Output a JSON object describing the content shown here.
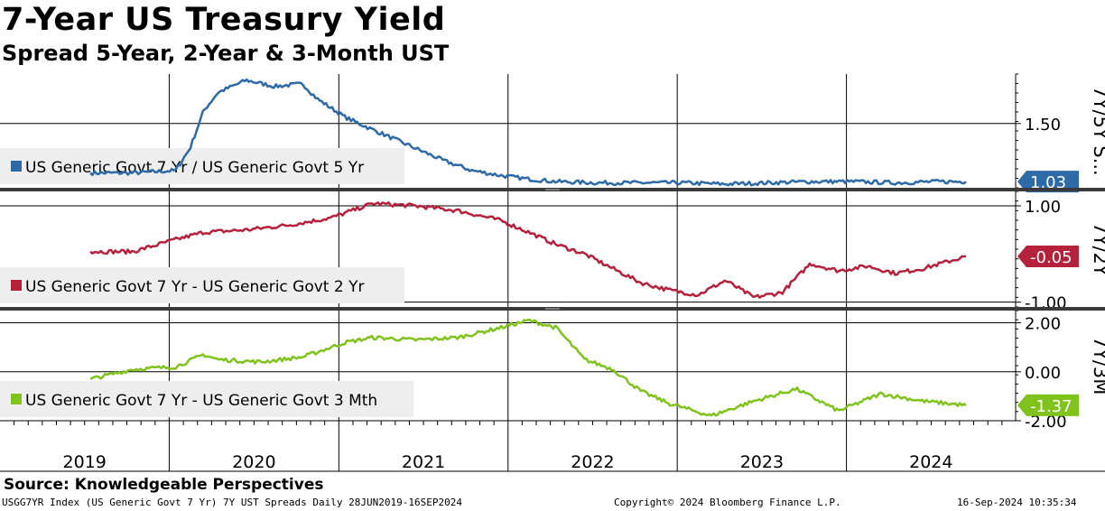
{
  "header": {
    "title": "7-Year US Treasury Yield",
    "subtitle": "Spread 5-Year, 2-Year & 3-Month UST"
  },
  "footer": {
    "source": "Source: Knowledgeable Perspectives",
    "left": "USGG7YR Index (US Generic Govt 7 Yr) 7Y UST Spreads  Daily 28JUN2019-16SEP2024",
    "center": "Copyright© 2024 Bloomberg Finance L.P.",
    "right": "16-Sep-2024 10:35:34"
  },
  "chart_data": [
    {
      "type": "line",
      "panel_label": "7Y/5Y S...",
      "legend": "US Generic Govt 7 Yr / US Generic Govt 5 Yr",
      "color": "#2e6aa8",
      "last_value": "1.03",
      "yticks": [
        {
          "label": "1.50",
          "v": 1.5
        }
      ],
      "ylim": [
        0.98,
        1.9
      ],
      "x": [
        "2019-07",
        "2019-10",
        "2020-01",
        "2020-02",
        "2020-03",
        "2020-04",
        "2020-06",
        "2020-08",
        "2020-10",
        "2020-11",
        "2021-01",
        "2021-03",
        "2021-04",
        "2021-06",
        "2021-08",
        "2021-10",
        "2021-12",
        "2022-02",
        "2022-04",
        "2022-07",
        "2022-10",
        "2023-01",
        "2023-04",
        "2023-07",
        "2023-10",
        "2024-01",
        "2024-04",
        "2024-07",
        "2024-09"
      ],
      "values": [
        1.1,
        1.1,
        1.12,
        1.3,
        1.6,
        1.75,
        1.85,
        1.8,
        1.82,
        1.7,
        1.55,
        1.45,
        1.4,
        1.3,
        1.2,
        1.12,
        1.08,
        1.05,
        1.03,
        1.02,
        1.02,
        1.02,
        1.01,
        1.02,
        1.03,
        1.03,
        1.02,
        1.03,
        1.03
      ]
    },
    {
      "type": "line",
      "panel_label": "7Y/2Y",
      "legend": "US Generic Govt 7 Yr - US Generic Govt 2 Yr",
      "color": "#b5213b",
      "last_value": "-0.05",
      "yticks": [
        {
          "label": "1.00",
          "v": 1.0
        },
        {
          "label": "-1.00",
          "v": -1.0
        }
      ],
      "ylim": [
        -1.1,
        1.3
      ],
      "x": [
        "2019-07",
        "2019-10",
        "2020-01",
        "2020-03",
        "2020-06",
        "2020-09",
        "2020-12",
        "2021-03",
        "2021-06",
        "2021-09",
        "2021-12",
        "2022-02",
        "2022-04",
        "2022-06",
        "2022-08",
        "2022-10",
        "2022-12",
        "2023-02",
        "2023-04",
        "2023-06",
        "2023-08",
        "2023-10",
        "2023-12",
        "2024-02",
        "2024-04",
        "2024-06",
        "2024-09"
      ],
      "values": [
        0.05,
        0.05,
        0.3,
        0.45,
        0.5,
        0.6,
        0.75,
        1.05,
        1.0,
        0.9,
        0.7,
        0.45,
        0.2,
        0.0,
        -0.3,
        -0.6,
        -0.75,
        -0.85,
        -0.55,
        -0.9,
        -0.8,
        -0.2,
        -0.35,
        -0.25,
        -0.4,
        -0.3,
        -0.05
      ]
    },
    {
      "type": "line",
      "panel_label": "7Y/3M",
      "legend": "US Generic Govt 7 Yr - US Generic Govt 3 Mth",
      "color": "#7fc31c",
      "last_value": "-1.37",
      "yticks": [
        {
          "label": "2.00",
          "v": 2.0
        },
        {
          "label": "0.00",
          "v": 0.0
        },
        {
          "label": "-2.00",
          "v": -2.0
        }
      ],
      "ylim": [
        -2.0,
        2.5
      ],
      "x": [
        "2019-07",
        "2019-10",
        "2020-01",
        "2020-03",
        "2020-04",
        "2020-07",
        "2020-10",
        "2021-01",
        "2021-03",
        "2021-06",
        "2021-09",
        "2021-12",
        "2022-02",
        "2022-04",
        "2022-06",
        "2022-08",
        "2022-10",
        "2022-12",
        "2023-03",
        "2023-06",
        "2023-09",
        "2023-12",
        "2024-03",
        "2024-06",
        "2024-09"
      ],
      "values": [
        -0.3,
        0.1,
        0.2,
        0.7,
        0.5,
        0.4,
        0.6,
        1.2,
        1.4,
        1.3,
        1.4,
        1.8,
        2.1,
        1.8,
        0.5,
        0.1,
        -0.8,
        -1.3,
        -1.8,
        -1.2,
        -0.7,
        -1.6,
        -0.9,
        -1.2,
        -1.37
      ]
    }
  ],
  "x_axis": {
    "years": [
      "2019",
      "2020",
      "2021",
      "2022",
      "2023",
      "2024"
    ]
  }
}
